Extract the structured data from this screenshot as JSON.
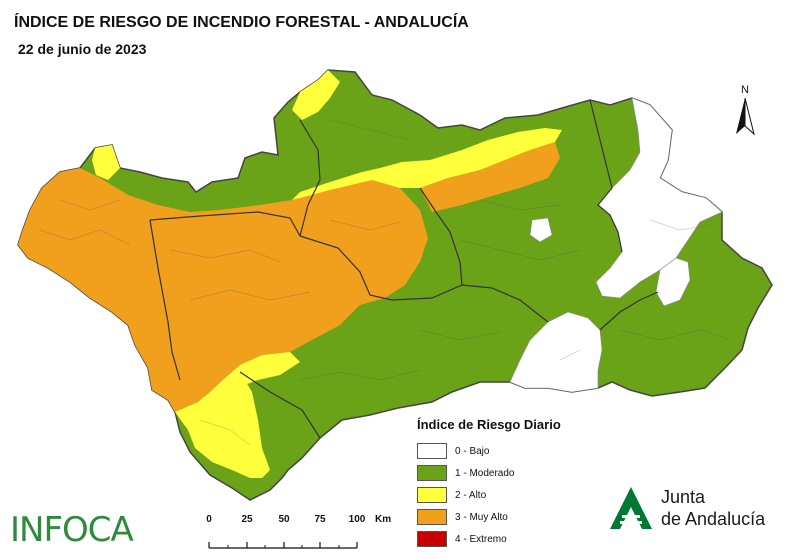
{
  "header": {
    "title": "ÍNDICE DE RIESGO DE INCENDIO FORESTAL - ANDALUCÍA",
    "date": "22 de junio de 2023"
  },
  "north_arrow": {
    "label": "N"
  },
  "legend": {
    "title": "Índice de Riesgo Diario",
    "items": [
      {
        "label": "0 - Bajo",
        "color": "#ffffff"
      },
      {
        "label": "1 - Moderado",
        "color": "#6aa318"
      },
      {
        "label": "2 - Alto",
        "color": "#ffff3c"
      },
      {
        "label": "3 - Muy Alto",
        "color": "#f0a01c"
      },
      {
        "label": "4 - Extremo",
        "color": "#c80000"
      }
    ]
  },
  "scale_bar": {
    "ticks": [
      "0",
      "25",
      "50",
      "75",
      "100"
    ],
    "unit": "Km"
  },
  "logos": {
    "infoca": "INFOCA",
    "junta_line1": "Junta",
    "junta_line2": "de Andalucía",
    "junta_color": "#007a33"
  },
  "map_colors": {
    "border": "#444444",
    "province_border": "#333333"
  }
}
